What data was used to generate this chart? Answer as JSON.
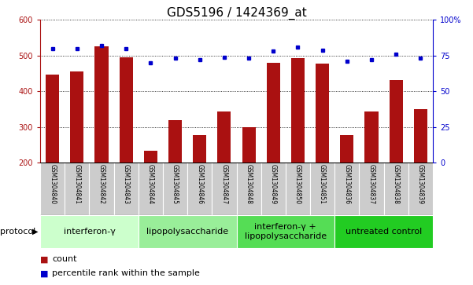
{
  "title": "GDS5196 / 1424369_at",
  "samples": [
    "GSM1304840",
    "GSM1304841",
    "GSM1304842",
    "GSM1304843",
    "GSM1304844",
    "GSM1304845",
    "GSM1304846",
    "GSM1304847",
    "GSM1304848",
    "GSM1304849",
    "GSM1304850",
    "GSM1304851",
    "GSM1304836",
    "GSM1304837",
    "GSM1304838",
    "GSM1304839"
  ],
  "counts": [
    447,
    455,
    525,
    495,
    232,
    318,
    278,
    343,
    300,
    480,
    492,
    477,
    278,
    343,
    432,
    350
  ],
  "percentiles": [
    80,
    80,
    82,
    80,
    70,
    73,
    72,
    74,
    73,
    78,
    81,
    79,
    71,
    72,
    76,
    73
  ],
  "groups": [
    {
      "label": "interferon-γ",
      "start": 0,
      "end": 4,
      "color": "#ccffcc"
    },
    {
      "label": "lipopolysaccharide",
      "start": 4,
      "end": 8,
      "color": "#99ee99"
    },
    {
      "label": "interferon-γ +\nlipopolysaccharide",
      "start": 8,
      "end": 12,
      "color": "#55dd55"
    },
    {
      "label": "untreated control",
      "start": 12,
      "end": 16,
      "color": "#22cc22"
    }
  ],
  "ylim_left": [
    200,
    600
  ],
  "ylim_right": [
    0,
    100
  ],
  "yticks_left": [
    200,
    300,
    400,
    500,
    600
  ],
  "yticks_right": [
    0,
    25,
    50,
    75,
    100
  ],
  "bar_color": "#aa1111",
  "dot_color": "#0000cc",
  "bar_width": 0.55,
  "bg_color": "#ffffff",
  "plot_bg": "#ffffff",
  "title_fontsize": 11,
  "tick_fontsize": 7,
  "label_fontsize": 8,
  "legend_fontsize": 8,
  "group_label_fontsize": 8,
  "sample_fontsize": 5.5
}
